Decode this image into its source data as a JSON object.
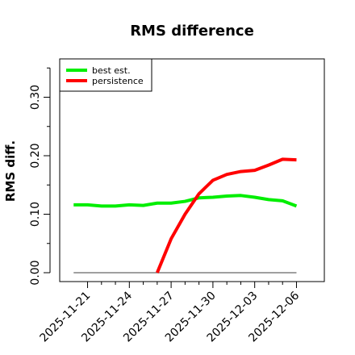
{
  "chart_data": {
    "type": "line",
    "title": "RMS difference",
    "xlabel": "",
    "ylabel": "RMS diff.",
    "ylim": [
      0.0,
      0.35
    ],
    "yticks": [
      0.0,
      0.1,
      0.2,
      0.3
    ],
    "ytick_labels": [
      "0.00",
      "0.10",
      "0.20",
      "0.30"
    ],
    "y_minor_ticks": [
      0.05,
      0.15,
      0.25,
      0.35
    ],
    "xticks": [
      "2025-11-21",
      "2025-11-24",
      "2025-11-27",
      "2025-11-30",
      "2025-12-03",
      "2025-12-06"
    ],
    "x_minor_ticks": [
      "2025-11-22",
      "2025-11-23",
      "2025-11-25",
      "2025-11-26",
      "2025-11-28",
      "2025-11-29",
      "2025-12-01",
      "2025-12-02",
      "2025-12-04",
      "2025-12-05"
    ],
    "xlim": [
      "2025-11-19",
      "2025-12-08"
    ],
    "legend_position": "top-left",
    "grid": false,
    "reference_line": {
      "y": 0.0,
      "x_start": "2025-11-20",
      "x_end": "2025-12-06",
      "color": "#808080"
    },
    "series": [
      {
        "name": "best est.",
        "color": "#00ee00",
        "x": [
          "2025-11-20",
          "2025-11-21",
          "2025-11-22",
          "2025-11-23",
          "2025-11-24",
          "2025-11-25",
          "2025-11-26",
          "2025-11-27",
          "2025-11-28",
          "2025-11-29",
          "2025-11-30",
          "2025-12-01",
          "2025-12-02",
          "2025-12-03",
          "2025-12-04",
          "2025-12-05",
          "2025-12-06"
        ],
        "values": [
          0.116,
          0.116,
          0.114,
          0.114,
          0.116,
          0.115,
          0.119,
          0.119,
          0.122,
          0.128,
          0.129,
          0.131,
          0.132,
          0.129,
          0.125,
          0.123,
          0.114
        ]
      },
      {
        "name": "persistence",
        "color": "#ff0000",
        "x": [
          "2025-11-26",
          "2025-11-27",
          "2025-11-28",
          "2025-11-29",
          "2025-11-30",
          "2025-12-01",
          "2025-12-02",
          "2025-12-03",
          "2025-12-04",
          "2025-12-05",
          "2025-12-06"
        ],
        "values": [
          0.0,
          0.058,
          0.1,
          0.135,
          0.158,
          0.168,
          0.173,
          0.175,
          0.184,
          0.194,
          0.193
        ]
      }
    ]
  }
}
